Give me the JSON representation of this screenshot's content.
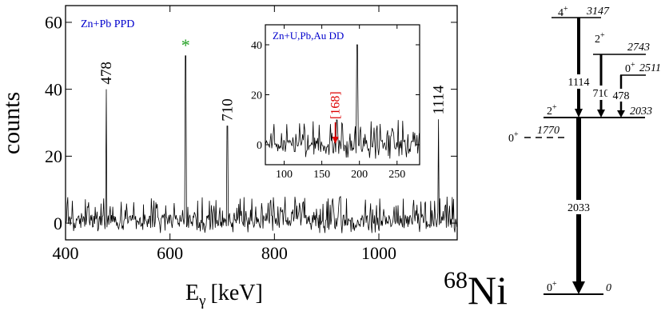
{
  "chart_data": [
    {
      "type": "line",
      "label": "Zn+Pb PPD",
      "xlabel_main": "E",
      "xlabel_sub": "γ",
      "xlabel_unit": "[keV]",
      "ylabel": "counts",
      "xlim": [
        400,
        1150
      ],
      "ylim": [
        -5,
        65
      ],
      "x_ticks": [
        400,
        600,
        800,
        1000
      ],
      "y_ticks": [
        0,
        20,
        40,
        60
      ],
      "line_color": "#000000",
      "label_color": "#0000cc",
      "star_color": "#22a022",
      "background_band": [
        -3,
        8
      ],
      "peaks": [
        {
          "x": 478,
          "counts": 40,
          "label": "478"
        },
        {
          "x": 630,
          "counts": 50,
          "label": "*"
        },
        {
          "x": 710,
          "counts": 29,
          "label": "710"
        },
        {
          "x": 1114,
          "counts": 31,
          "label": "1114"
        }
      ]
    },
    {
      "type": "line",
      "label": "Zn+U,Pb,Au DD",
      "xlim": [
        75,
        280
      ],
      "ylim": [
        -8,
        48
      ],
      "x_ticks": [
        100,
        150,
        200,
        250
      ],
      "y_ticks": [
        0,
        20,
        40
      ],
      "line_color": "#000000",
      "label_color": "#0000cc",
      "background_band": [
        -6,
        10
      ],
      "peaks": [
        {
          "x": 197,
          "counts": 40,
          "label": ""
        }
      ],
      "marker": {
        "x": 168,
        "label": "[168]",
        "color": "#dd0000"
      }
    }
  ],
  "level_scheme": {
    "nucleus_mass": "68",
    "nucleus_symbol": "Ni",
    "levels": [
      {
        "energy": "3147",
        "spin": "4",
        "parity": "+"
      },
      {
        "energy": "2743",
        "spin": "2",
        "parity": "+"
      },
      {
        "energy": "2511",
        "spin": "0",
        "parity": "+"
      },
      {
        "energy": "2033",
        "spin": "2",
        "parity": "+"
      },
      {
        "energy": "1770",
        "spin": "0",
        "parity": "+"
      },
      {
        "energy": "0",
        "spin": "0",
        "parity": "+"
      }
    ],
    "transitions": [
      {
        "from": "3147",
        "to": "2033",
        "label": "1114"
      },
      {
        "from": "2743",
        "to": "2033",
        "label": "710"
      },
      {
        "from": "2511",
        "to": "2033",
        "label": "478"
      },
      {
        "from": "2033",
        "to": "0",
        "label": "2033"
      }
    ]
  }
}
